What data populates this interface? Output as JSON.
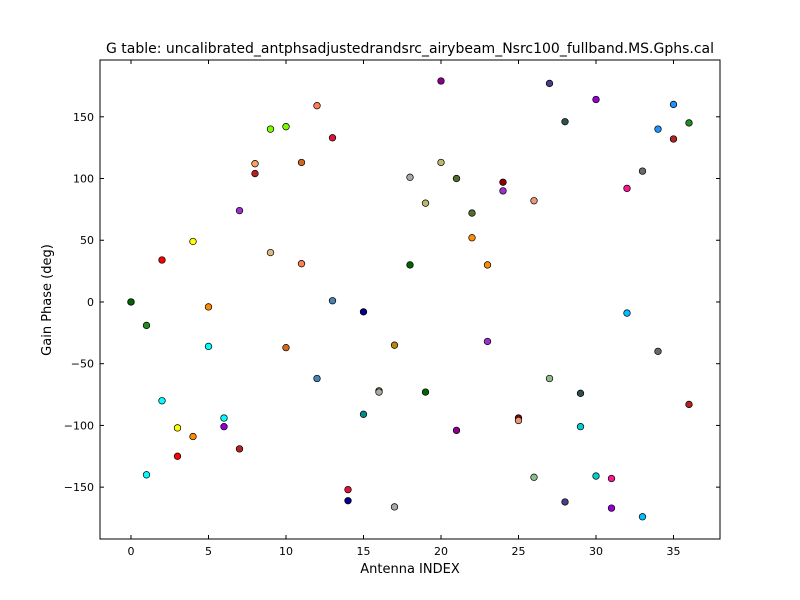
{
  "chart_data": {
    "type": "scatter",
    "title": "G table: uncalibrated_antphsadjustedrandsrc_airybeam_Nsrc100_fullband.MS.Gphs.cal",
    "xlabel": "Antenna INDEX",
    "ylabel": "Gain Phase (deg)",
    "xlim": [
      -2,
      38
    ],
    "ylim": [
      -192,
      196
    ],
    "xticks": [
      0,
      5,
      10,
      15,
      20,
      25,
      30,
      35
    ],
    "yticks": [
      -150,
      -100,
      -50,
      0,
      50,
      100,
      150
    ],
    "grid": false,
    "points": [
      {
        "x": 0,
        "y": 0,
        "color": "#228b22"
      },
      {
        "x": 0,
        "y": 0,
        "color": "#006400"
      },
      {
        "x": 1,
        "y": -19,
        "color": "#228b22"
      },
      {
        "x": 1,
        "y": -140,
        "color": "#00ffff"
      },
      {
        "x": 2,
        "y": 34,
        "color": "#ff0000"
      },
      {
        "x": 2,
        "y": -80,
        "color": "#00ffff"
      },
      {
        "x": 3,
        "y": -102,
        "color": "#ffff00"
      },
      {
        "x": 3,
        "y": -125,
        "color": "#ff0000"
      },
      {
        "x": 4,
        "y": 49,
        "color": "#ffff00"
      },
      {
        "x": 4,
        "y": -109,
        "color": "#ff8c00"
      },
      {
        "x": 5,
        "y": -4,
        "color": "#ff8c00"
      },
      {
        "x": 5,
        "y": -36,
        "color": "#00ffff"
      },
      {
        "x": 6,
        "y": -94,
        "color": "#00ffff"
      },
      {
        "x": 6,
        "y": -101,
        "color": "#9400d3"
      },
      {
        "x": 7,
        "y": 74,
        "color": "#9932cc"
      },
      {
        "x": 7,
        "y": -119,
        "color": "#b22222"
      },
      {
        "x": 8,
        "y": 112,
        "color": "#f4a460"
      },
      {
        "x": 8,
        "y": 104,
        "color": "#b22222"
      },
      {
        "x": 9,
        "y": 140,
        "color": "#7cfc00"
      },
      {
        "x": 9,
        "y": 40,
        "color": "#deb887"
      },
      {
        "x": 10,
        "y": 142,
        "color": "#7cfc00"
      },
      {
        "x": 10,
        "y": -37,
        "color": "#d2691e"
      },
      {
        "x": 11,
        "y": 113,
        "color": "#d2691e"
      },
      {
        "x": 11,
        "y": 31,
        "color": "#ff7f50"
      },
      {
        "x": 12,
        "y": 159,
        "color": "#ff7f50"
      },
      {
        "x": 12,
        "y": -62,
        "color": "#4682b4"
      },
      {
        "x": 13,
        "y": 133,
        "color": "#dc143c"
      },
      {
        "x": 13,
        "y": 1,
        "color": "#4682b4"
      },
      {
        "x": 14,
        "y": -152,
        "color": "#dc143c"
      },
      {
        "x": 14,
        "y": -161,
        "color": "#00008b"
      },
      {
        "x": 15,
        "y": -8,
        "color": "#00008b"
      },
      {
        "x": 15,
        "y": -91,
        "color": "#008b8b"
      },
      {
        "x": 16,
        "y": -72,
        "color": "#b8860b"
      },
      {
        "x": 16,
        "y": -73,
        "color": "#a9a9a9"
      },
      {
        "x": 17,
        "y": -35,
        "color": "#b8860b"
      },
      {
        "x": 17,
        "y": -166,
        "color": "#a9a9a9"
      },
      {
        "x": 18,
        "y": 101,
        "color": "#a9a9a9"
      },
      {
        "x": 18,
        "y": 30,
        "color": "#006400"
      },
      {
        "x": 19,
        "y": 80,
        "color": "#bdb76b"
      },
      {
        "x": 19,
        "y": -73,
        "color": "#006400"
      },
      {
        "x": 20,
        "y": 179,
        "color": "#8b008b"
      },
      {
        "x": 20,
        "y": 113,
        "color": "#bdb76b"
      },
      {
        "x": 21,
        "y": 100,
        "color": "#556b2f"
      },
      {
        "x": 21,
        "y": -104,
        "color": "#8b008b"
      },
      {
        "x": 22,
        "y": 72,
        "color": "#556b2f"
      },
      {
        "x": 22,
        "y": 52,
        "color": "#ff8c00"
      },
      {
        "x": 23,
        "y": 30,
        "color": "#ff8c00"
      },
      {
        "x": 23,
        "y": -32,
        "color": "#9932cc"
      },
      {
        "x": 24,
        "y": 97,
        "color": "#8b0000"
      },
      {
        "x": 24,
        "y": 90,
        "color": "#9932cc"
      },
      {
        "x": 25,
        "y": -94,
        "color": "#8b0000"
      },
      {
        "x": 25,
        "y": -96,
        "color": "#e9967a"
      },
      {
        "x": 26,
        "y": 82,
        "color": "#e9967a"
      },
      {
        "x": 26,
        "y": -142,
        "color": "#8fbc8f"
      },
      {
        "x": 27,
        "y": 177,
        "color": "#483d8b"
      },
      {
        "x": 27,
        "y": -62,
        "color": "#8fbc8f"
      },
      {
        "x": 28,
        "y": 146,
        "color": "#2f4f4f"
      },
      {
        "x": 28,
        "y": -162,
        "color": "#483d8b"
      },
      {
        "x": 29,
        "y": -74,
        "color": "#2f4f4f"
      },
      {
        "x": 29,
        "y": -101,
        "color": "#00ced1"
      },
      {
        "x": 30,
        "y": 164,
        "color": "#9400d3"
      },
      {
        "x": 30,
        "y": -141,
        "color": "#00ced1"
      },
      {
        "x": 31,
        "y": -143,
        "color": "#ff1493"
      },
      {
        "x": 31,
        "y": -167,
        "color": "#9400d3"
      },
      {
        "x": 32,
        "y": 92,
        "color": "#ff1493"
      },
      {
        "x": 32,
        "y": -9,
        "color": "#00bfff"
      },
      {
        "x": 33,
        "y": 106,
        "color": "#696969"
      },
      {
        "x": 33,
        "y": -174,
        "color": "#00bfff"
      },
      {
        "x": 34,
        "y": 140,
        "color": "#1e90ff"
      },
      {
        "x": 34,
        "y": -40,
        "color": "#696969"
      },
      {
        "x": 35,
        "y": 160,
        "color": "#1e90ff"
      },
      {
        "x": 35,
        "y": 132,
        "color": "#b22222"
      },
      {
        "x": 36,
        "y": 145,
        "color": "#228b22"
      },
      {
        "x": 36,
        "y": -83,
        "color": "#b22222"
      }
    ]
  }
}
